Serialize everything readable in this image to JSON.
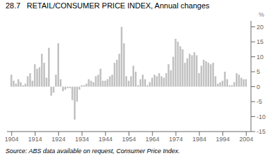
{
  "chart_data": {
    "type": "bar",
    "title": "28.7   RETAIL/CONSUMER PRICE INDEX, Annual changes",
    "ylabel": "%",
    "annotations": [
      "Source: ABS data available on request, Consumer Price Index."
    ],
    "color": "#c0c0c0",
    "grid": false,
    "xlim": [
      1902,
      2006
    ],
    "ylim": [
      -15,
      22
    ],
    "yticks": [
      -15,
      -10,
      -5,
      0,
      5,
      10,
      15,
      20
    ],
    "xticks": [
      1904,
      1914,
      1924,
      1934,
      1944,
      1954,
      1964,
      1974,
      1984,
      1994,
      2004
    ],
    "x": [
      1904,
      1905,
      1906,
      1907,
      1908,
      1909,
      1910,
      1911,
      1912,
      1913,
      1914,
      1915,
      1916,
      1917,
      1918,
      1919,
      1920,
      1921,
      1922,
      1923,
      1924,
      1925,
      1926,
      1927,
      1928,
      1929,
      1930,
      1931,
      1932,
      1933,
      1934,
      1935,
      1936,
      1937,
      1938,
      1939,
      1940,
      1941,
      1942,
      1943,
      1944,
      1945,
      1946,
      1947,
      1948,
      1949,
      1950,
      1951,
      1952,
      1953,
      1954,
      1955,
      1956,
      1957,
      1958,
      1959,
      1960,
      1961,
      1962,
      1963,
      1964,
      1965,
      1966,
      1967,
      1968,
      1969,
      1970,
      1971,
      1972,
      1973,
      1974,
      1975,
      1976,
      1977,
      1978,
      1979,
      1980,
      1981,
      1982,
      1983,
      1984,
      1985,
      1986,
      1987,
      1988,
      1989,
      1990,
      1991,
      1992,
      1993,
      1994,
      1995,
      1996,
      1997,
      1998,
      1999,
      2000,
      2001,
      2002,
      2003,
      2004
    ],
    "values": [
      4.0,
      2.0,
      1.0,
      2.5,
      1.5,
      0.5,
      1.0,
      3.5,
      4.5,
      2.0,
      7.5,
      6.0,
      6.5,
      11.0,
      8.0,
      3.0,
      13.0,
      -3.0,
      -2.0,
      4.0,
      14.5,
      2.5,
      -1.5,
      -1.0,
      -0.5,
      -0.5,
      -4.5,
      -11.0,
      -5.0,
      -1.0,
      0.5,
      0.5,
      1.0,
      2.5,
      2.0,
      1.5,
      3.5,
      4.0,
      6.0,
      2.0,
      2.0,
      2.5,
      3.5,
      4.0,
      8.0,
      9.0,
      11.0,
      20.0,
      14.5,
      3.5,
      2.0,
      3.5,
      7.0,
      5.0,
      0.5,
      2.5,
      4.0,
      2.5,
      0.5,
      1.5,
      3.0,
      4.0,
      3.5,
      4.5,
      3.5,
      3.0,
      4.5,
      7.5,
      5.5,
      10.0,
      16.0,
      15.0,
      13.5,
      12.5,
      8.0,
      9.5,
      11.0,
      10.5,
      11.5,
      10.5,
      4.5,
      7.0,
      9.0,
      8.5,
      8.0,
      7.5,
      8.0,
      3.5,
      1.0,
      1.5,
      2.0,
      5.0,
      2.5,
      0.5,
      0.5,
      1.5,
      4.5,
      4.0,
      3.0,
      2.5,
      2.5
    ]
  }
}
